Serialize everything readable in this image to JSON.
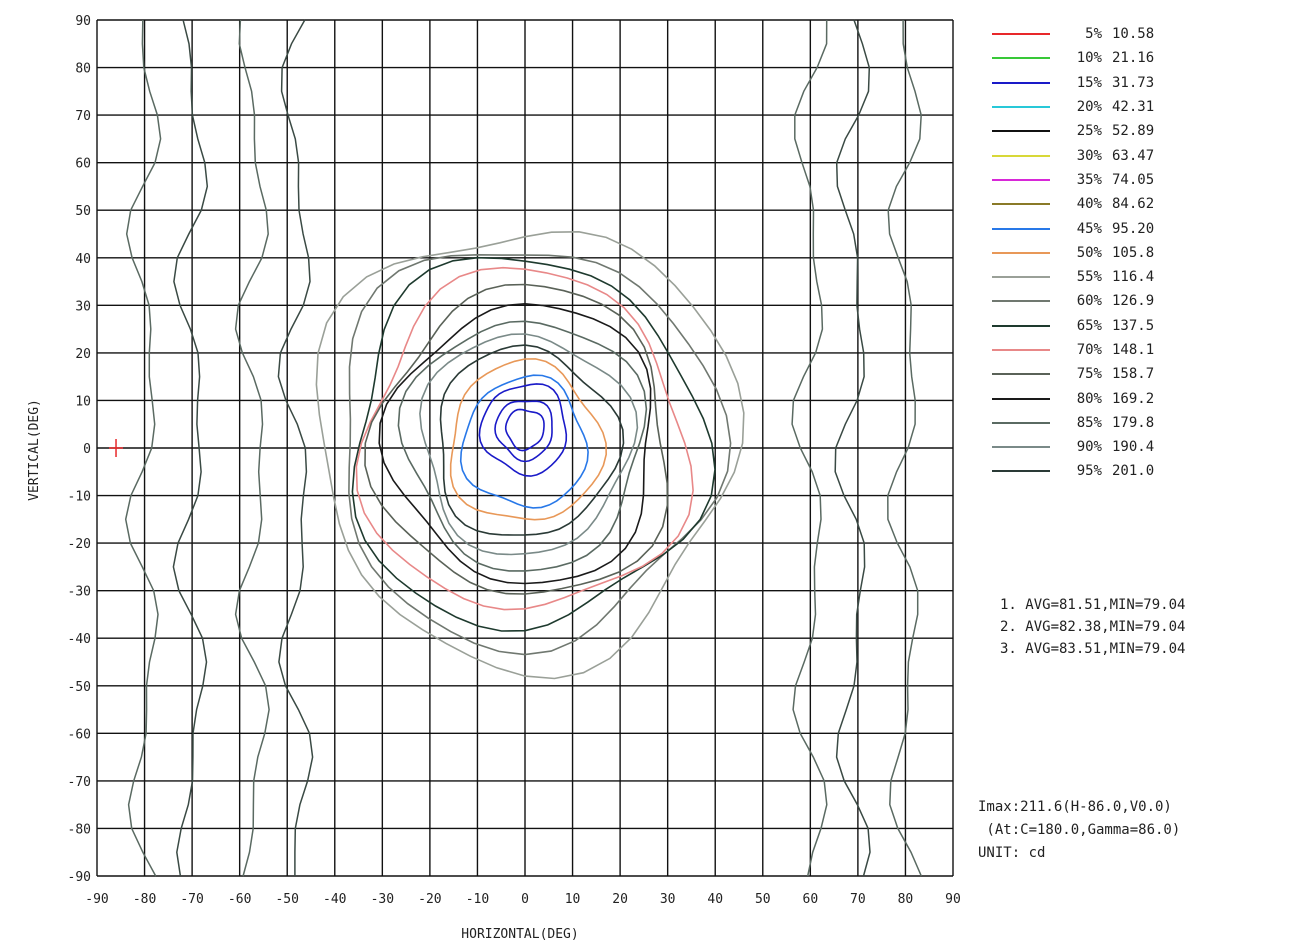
{
  "chart_data": {
    "type": "contour",
    "title": "",
    "xlabel": "HORIZONTAL(DEG)",
    "ylabel": "VERTICAL(DEG)",
    "xlim": [
      -90,
      90
    ],
    "ylim": [
      -90,
      90
    ],
    "grid": true,
    "x_ticks": [
      "-90",
      "-80",
      "-70",
      "-60",
      "-50",
      "-40",
      "-30",
      "-20",
      "-10",
      "0",
      "10",
      "20",
      "30",
      "40",
      "50",
      "60",
      "70",
      "80",
      "90"
    ],
    "y_ticks": [
      "90",
      "80",
      "70",
      "60",
      "50",
      "40",
      "30",
      "20",
      "10",
      "0",
      "-10",
      "-20",
      "-30",
      "-40",
      "-50",
      "-60",
      "-70",
      "-80",
      "-90"
    ],
    "legend_position": "right",
    "levels": [
      {
        "pct": "5%",
        "value": "10.58",
        "color": "#e8282a"
      },
      {
        "pct": "10%",
        "value": "21.16",
        "color": "#38c838"
      },
      {
        "pct": "15%",
        "value": "31.73",
        "color": "#1a1ac8"
      },
      {
        "pct": "20%",
        "value": "42.31",
        "color": "#28c8d8"
      },
      {
        "pct": "25%",
        "value": "52.89",
        "color": "#111111"
      },
      {
        "pct": "30%",
        "value": "63.47",
        "color": "#d8d838"
      },
      {
        "pct": "35%",
        "value": "74.05",
        "color": "#d828d8"
      },
      {
        "pct": "40%",
        "value": "84.62",
        "color": "#8a7a28"
      },
      {
        "pct": "45%",
        "value": "95.20",
        "color": "#2878e8"
      },
      {
        "pct": "50%",
        "value": "105.8",
        "color": "#e89858"
      },
      {
        "pct": "55%",
        "value": "116.4",
        "color": "#9aa098"
      },
      {
        "pct": "60%",
        "value": "126.9",
        "color": "#707870"
      },
      {
        "pct": "65%",
        "value": "137.5",
        "color": "#1e3a2e"
      },
      {
        "pct": "70%",
        "value": "148.1",
        "color": "#e88888"
      },
      {
        "pct": "75%",
        "value": "158.7",
        "color": "#5a6258"
      },
      {
        "pct": "80%",
        "value": "169.2",
        "color": "#1a1a1a"
      },
      {
        "pct": "85%",
        "value": "179.8",
        "color": "#5a6a62"
      },
      {
        "pct": "90%",
        "value": "190.4",
        "color": "#7a8a88"
      },
      {
        "pct": "95%",
        "value": "201.0",
        "color": "#2a3a36"
      }
    ],
    "rings": [
      {
        "radius_deg": 44,
        "color": "#9aa098"
      },
      {
        "radius_deg": 40,
        "color": "#707870"
      },
      {
        "radius_deg": 37,
        "color": "#1e3a2e"
      },
      {
        "radius_deg": 34,
        "color": "#e88888"
      },
      {
        "radius_deg": 31,
        "color": "#5a6258"
      },
      {
        "radius_deg": 28,
        "color": "#1a1a1a"
      },
      {
        "radius_deg": 25,
        "color": "#5a6a62"
      },
      {
        "radius_deg": 22,
        "color": "#7a8a88"
      },
      {
        "radius_deg": 19,
        "color": "#2a3a36"
      },
      {
        "radius_deg": 16,
        "color": "#e89858"
      },
      {
        "radius_deg": 13,
        "color": "#2878e8"
      },
      {
        "radius_deg": 9,
        "color": "#1a1ac8"
      },
      {
        "radius_deg": 6,
        "color": "#1a1ac8"
      },
      {
        "radius_deg": 4,
        "color": "#1a1ac8"
      }
    ],
    "peak_marker": {
      "h": -86,
      "v": 0,
      "color": "#e8282a"
    }
  },
  "stats": [
    "1. AVG=81.51,MIN=79.04",
    "2. AVG=82.38,MIN=79.04",
    "3. AVG=83.51,MIN=79.04"
  ],
  "info": {
    "imax": "Imax:211.6(H-86.0,V0.0)",
    "at": " (At:C=180.0,Gamma=86.0)",
    "unit": "UNIT: cd"
  }
}
